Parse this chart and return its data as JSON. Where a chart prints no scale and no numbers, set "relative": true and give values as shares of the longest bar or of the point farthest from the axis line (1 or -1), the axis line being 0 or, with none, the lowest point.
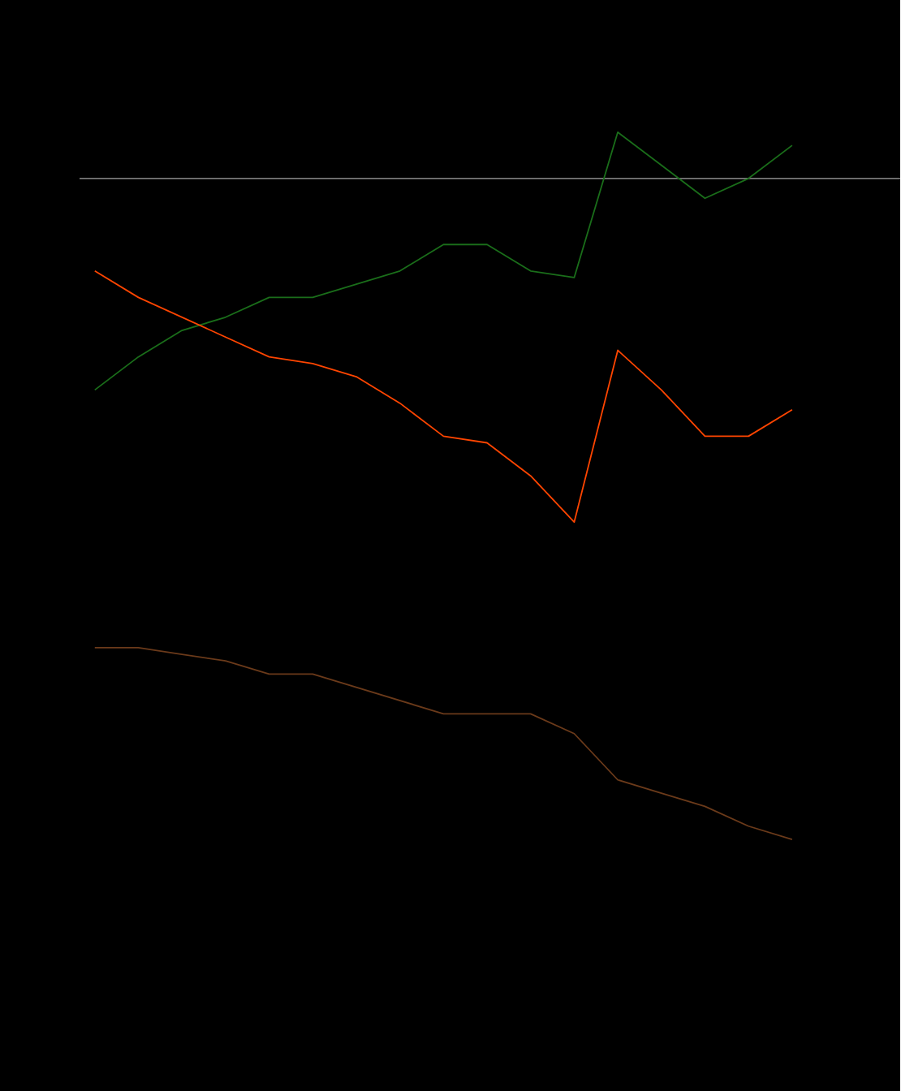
{
  "chart_data": {
    "type": "line",
    "relative": true,
    "categories": [
      null,
      null,
      null,
      null,
      null,
      null,
      null,
      null,
      null,
      null,
      null,
      null,
      null,
      null,
      null,
      null,
      null
    ],
    "series": [
      {
        "color": "#1a6e1a",
        "values": [
          -0.32,
          -0.27,
          -0.23,
          -0.21,
          -0.18,
          -0.18,
          -0.16,
          -0.14,
          -0.1,
          -0.1,
          -0.14,
          -0.15,
          0.07,
          0.02,
          -0.03,
          0.0,
          0.05
        ]
      },
      {
        "color": "#ff4500",
        "values": [
          -0.14,
          -0.18,
          -0.21,
          -0.24,
          -0.27,
          -0.28,
          -0.3,
          -0.34,
          -0.39,
          -0.4,
          -0.45,
          -0.52,
          -0.26,
          -0.32,
          -0.39,
          -0.39,
          -0.35
        ]
      },
      {
        "color": "#6b3a1a",
        "values": [
          -0.71,
          -0.71,
          -0.72,
          -0.73,
          -0.75,
          -0.75,
          -0.77,
          -0.79,
          -0.81,
          -0.81,
          -0.81,
          -0.84,
          -0.91,
          -0.93,
          -0.95,
          -0.98,
          -1
        ]
      }
    ]
  }
}
